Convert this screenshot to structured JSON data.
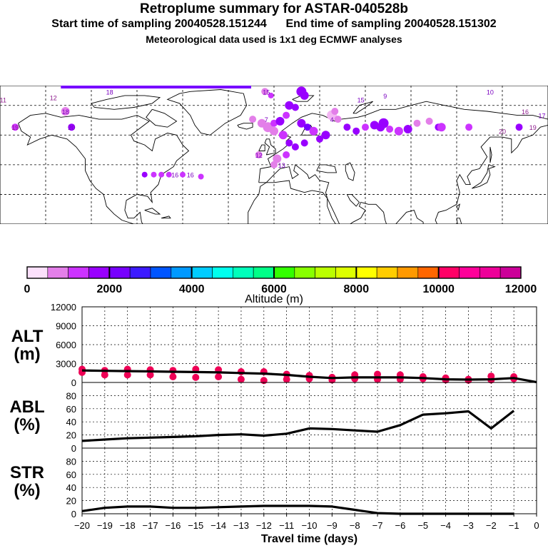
{
  "header": {
    "title": "Retroplume summary for ASTAR-040528b",
    "sampling_line": "Start time of sampling 20040528.151244      End time of sampling 20040528.151302",
    "met_line": "Meteorological data used is 1x1 deg ECMWF analyses"
  },
  "map_labels": [
    {
      "text": "11",
      "lon": -178,
      "lat": 78,
      "color": "#8b1a8b"
    },
    {
      "text": "12",
      "lon": -145,
      "lat": 79,
      "color": "#8b1a8b"
    },
    {
      "text": "18",
      "lon": -137,
      "lat": 72,
      "color": "#7a00c0"
    },
    {
      "text": "19",
      "lon": -170,
      "lat": 64,
      "color": "#8b1a8b"
    },
    {
      "text": "20",
      "lon": -133,
      "lat": 64,
      "color": "#7a00c0"
    },
    {
      "text": "18",
      "lon": -108,
      "lat": 82,
      "color": "#7a00c0"
    },
    {
      "text": "15",
      "lon": -5,
      "lat": 82,
      "color": "#7a00c0"
    },
    {
      "text": "7",
      "lon": -5,
      "lat": 68,
      "color": "#7a00c0"
    },
    {
      "text": "4",
      "lon": 38,
      "lat": 68,
      "color": "#7a00c0"
    },
    {
      "text": "15",
      "lon": 57,
      "lat": 78,
      "color": "#7a00c0"
    },
    {
      "text": "9",
      "lon": 73,
      "lat": 80,
      "color": "#7a00c0"
    },
    {
      "text": "10",
      "lon": 142,
      "lat": 82,
      "color": "#7a00c0"
    },
    {
      "text": "16",
      "lon": 165,
      "lat": 72,
      "color": "#8b1a8b"
    },
    {
      "text": "17",
      "lon": 176,
      "lat": 70,
      "color": "#7a00c0"
    },
    {
      "text": "19",
      "lon": 170,
      "lat": 64,
      "color": "#8b1a8b"
    },
    {
      "text": "20",
      "lon": 150,
      "lat": 62,
      "color": "#8b1a8b"
    },
    {
      "text": "13",
      "lon": 5,
      "lat": 45,
      "color": "#7a00c0"
    },
    {
      "text": "12",
      "lon": -10,
      "lat": 50,
      "color": "#7a00c0"
    },
    {
      "text": "16",
      "lon": -55,
      "lat": 40,
      "color": "#7a00c0"
    },
    {
      "text": "16",
      "lon": -65,
      "lat": 40,
      "color": "#7a00c0"
    }
  ],
  "color_scale": {
    "label": "Altitude (m)",
    "ticks": [
      "0",
      "2000",
      "4000",
      "6000",
      "8000",
      "10000",
      "12000"
    ],
    "colors": [
      "#fbe0fb",
      "#f3b6f3",
      "#e37fe9",
      "#cc33ff",
      "#9900ff",
      "#7700ff",
      "#3c1aff",
      "#0055ff",
      "#0099ff",
      "#00ccff",
      "#00ffee",
      "#00ffbb",
      "#00ff88",
      "#33ff00",
      "#88ff00",
      "#bbff00",
      "#ddff00",
      "#ffff00",
      "#ffcc00",
      "#ff9900",
      "#ff6600",
      "#ff0066",
      "#ff0099",
      "#ee0099",
      "#cc0099",
      "#990099"
    ]
  },
  "chart_data": [
    {
      "type": "line",
      "ylabel": "ALT\n(m)",
      "ylabel_lines": [
        "ALT",
        "(m)"
      ],
      "yticks": [
        "0",
        "3000",
        "6000",
        "9000",
        "12000"
      ],
      "ylim": [
        0,
        12000
      ],
      "x": [
        -20,
        -19,
        -18,
        -17,
        -16,
        -15,
        -14,
        -13,
        -12,
        -11,
        -10,
        -9,
        -8,
        -7,
        -6,
        -5,
        -4,
        -3,
        -2,
        -1,
        0
      ],
      "series": [
        {
          "name": "median altitude",
          "values": [
            1900,
            1850,
            1800,
            1750,
            1700,
            1650,
            1600,
            1500,
            1400,
            1200,
            900,
            700,
            800,
            800,
            800,
            700,
            500,
            450,
            500,
            700,
            50
          ]
        }
      ],
      "range_points": [
        {
          "x": -20,
          "y": 2100
        },
        {
          "x": -20,
          "y": 1600
        },
        {
          "x": -19,
          "y": 1900
        },
        {
          "x": -19,
          "y": 1200
        },
        {
          "x": -18,
          "y": 2100
        },
        {
          "x": -18,
          "y": 1200
        },
        {
          "x": -17,
          "y": 2000
        },
        {
          "x": -17,
          "y": 1200
        },
        {
          "x": -16,
          "y": 1900
        },
        {
          "x": -16,
          "y": 900
        },
        {
          "x": -15,
          "y": 2100
        },
        {
          "x": -15,
          "y": 800
        },
        {
          "x": -14,
          "y": 2000
        },
        {
          "x": -14,
          "y": 900
        },
        {
          "x": -13,
          "y": 1700
        },
        {
          "x": -13,
          "y": 500
        },
        {
          "x": -12,
          "y": 1700
        },
        {
          "x": -12,
          "y": 300
        },
        {
          "x": -11,
          "y": 1300
        },
        {
          "x": -11,
          "y": 500
        },
        {
          "x": -10,
          "y": 1100
        },
        {
          "x": -10,
          "y": 600
        },
        {
          "x": -9,
          "y": 800
        },
        {
          "x": -9,
          "y": 400
        },
        {
          "x": -8,
          "y": 1200
        },
        {
          "x": -8,
          "y": 600
        },
        {
          "x": -7,
          "y": 1300
        },
        {
          "x": -7,
          "y": 500
        },
        {
          "x": -6,
          "y": 1200
        },
        {
          "x": -6,
          "y": 500
        },
        {
          "x": -5,
          "y": 900
        },
        {
          "x": -5,
          "y": 600
        },
        {
          "x": -4,
          "y": 700
        },
        {
          "x": -4,
          "y": 400
        },
        {
          "x": -3,
          "y": 500
        },
        {
          "x": -3,
          "y": 350
        },
        {
          "x": -2,
          "y": 1000
        },
        {
          "x": -2,
          "y": 400
        },
        {
          "x": -1,
          "y": 900
        },
        {
          "x": -1,
          "y": 600
        }
      ]
    },
    {
      "type": "line",
      "ylabel_lines": [
        "ABL",
        "(%)"
      ],
      "yticks": [
        "0",
        "20",
        "40",
        "60",
        "80"
      ],
      "ylim": [
        0,
        100
      ],
      "x": [
        -20,
        -19,
        -18,
        -17,
        -16,
        -15,
        -14,
        -13,
        -12,
        -11,
        -10,
        -9,
        -8,
        -7,
        -6,
        -5,
        -4,
        -3,
        -2,
        -1
      ],
      "series": [
        {
          "name": "fraction in ABL",
          "values": [
            11,
            13,
            15,
            16,
            17,
            18,
            20,
            21,
            19,
            22,
            30,
            29,
            27,
            25,
            35,
            51,
            53,
            56,
            30,
            57
          ]
        }
      ]
    },
    {
      "type": "line",
      "ylabel_lines": [
        "STR",
        "(%)"
      ],
      "yticks": [
        "0",
        "20",
        "40",
        "60",
        "80"
      ],
      "ylim": [
        0,
        100
      ],
      "xlabel": "Travel time (days)",
      "xticks": [
        "-20",
        "-19",
        "-18",
        "-17",
        "-16",
        "-15",
        "-14",
        "-13",
        "-12",
        "-11",
        "-10",
        "-9",
        "-8",
        "-7",
        "-6",
        "-5",
        "-4",
        "-3",
        "-2",
        "-1",
        "0"
      ],
      "x": [
        -20,
        -19,
        -18,
        -17,
        -16,
        -15,
        -14,
        -13,
        -12,
        -11,
        -10,
        -9,
        -8,
        -7,
        -6,
        -5,
        -4,
        -3,
        -2,
        -1
      ],
      "series": [
        {
          "name": "fraction in stratosphere",
          "values": [
            4,
            9,
            11,
            11,
            9,
            9,
            10,
            11,
            12,
            12,
            12,
            11,
            6,
            1,
            0,
            0,
            0,
            0,
            0,
            0
          ]
        }
      ]
    }
  ],
  "xticks_display": [
    "−20",
    "−19",
    "−18",
    "−17",
    "−16",
    "−15",
    "−14",
    "−13",
    "−12",
    "−11",
    "−10",
    "−9",
    "−8",
    "−7",
    "−6",
    "−5",
    "−4",
    "−3",
    "−2",
    "−1",
    "0"
  ]
}
